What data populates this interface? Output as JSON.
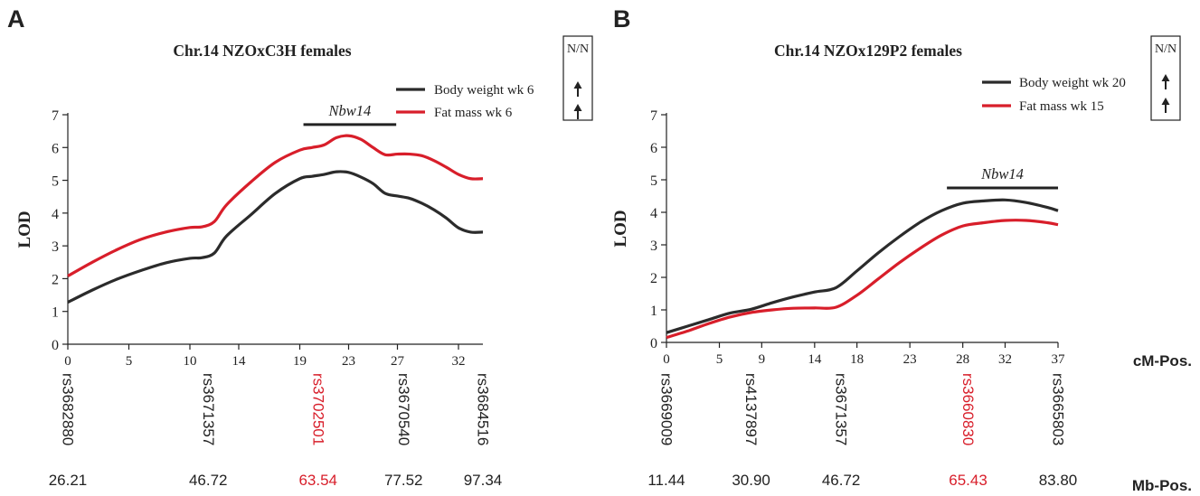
{
  "figure": {
    "bottom_row_labels": {
      "cm": "cM-Pos.",
      "mb": "Mb-Pos."
    },
    "legend_box_header": "N/N",
    "colors": {
      "body_weight": "#2b2b2b",
      "fat_mass": "#d81e2a",
      "marker_highlight": "#d81e2a",
      "text": "#222222"
    }
  },
  "chart_data": [
    {
      "type": "line",
      "panel_label": "A",
      "title": "Chr.14 NZOxC3H females",
      "ylabel": "LOD",
      "xlabel": "",
      "ylim": [
        0,
        7
      ],
      "xlim": [
        0,
        34
      ],
      "yticks": [
        0,
        1,
        2,
        3,
        4,
        5,
        6,
        7
      ],
      "xticks": [
        0,
        5,
        10,
        14,
        19,
        23,
        27,
        32
      ],
      "legend_position": "top-right",
      "series": [
        {
          "name": "Body weight wk 6",
          "color": "#2b2b2b",
          "x": [
            0,
            2,
            4,
            6,
            8,
            10,
            11,
            12,
            13,
            15,
            17,
            19,
            20,
            21,
            22,
            23,
            24,
            25,
            26,
            27,
            28,
            29,
            30,
            31,
            32,
            33,
            34
          ],
          "y": [
            1.28,
            1.65,
            1.98,
            2.25,
            2.48,
            2.62,
            2.64,
            2.78,
            3.3,
            3.95,
            4.6,
            5.05,
            5.12,
            5.18,
            5.26,
            5.24,
            5.1,
            4.9,
            4.6,
            4.52,
            4.45,
            4.3,
            4.1,
            3.85,
            3.55,
            3.42,
            3.42
          ]
        },
        {
          "name": "Fat mass wk 6",
          "color": "#d81e2a",
          "x": [
            0,
            2,
            4,
            6,
            8,
            10,
            11,
            12,
            13,
            15,
            17,
            19,
            20,
            21,
            22,
            23,
            24,
            25,
            26,
            27,
            28,
            29,
            30,
            31,
            32,
            33,
            34
          ],
          "y": [
            2.08,
            2.5,
            2.88,
            3.2,
            3.42,
            3.56,
            3.58,
            3.74,
            4.25,
            4.95,
            5.55,
            5.92,
            6.0,
            6.08,
            6.3,
            6.36,
            6.25,
            6.0,
            5.78,
            5.8,
            5.8,
            5.75,
            5.6,
            5.4,
            5.18,
            5.05,
            5.05
          ]
        }
      ],
      "qtl_bar": {
        "label": "Nbw14",
        "x_start": 19.3,
        "x_end": 26.9,
        "lod": 6.7
      },
      "legend_arrows": [
        "up",
        "up"
      ],
      "markers": [
        {
          "name": "rs3682880",
          "mb": "26.21",
          "x": 0,
          "highlight": false
        },
        {
          "name": "rs3671357",
          "mb": "46.72",
          "x": 11.5,
          "highlight": false
        },
        {
          "name": "rs3702501",
          "mb": "63.54",
          "x": 20.5,
          "highlight": true
        },
        {
          "name": "rs3670540",
          "mb": "77.52",
          "x": 27.5,
          "highlight": false
        },
        {
          "name": "rs3684516",
          "mb": "97.34",
          "x": 34,
          "highlight": false
        }
      ]
    },
    {
      "type": "line",
      "panel_label": "B",
      "title": "Chr.14 NZOx129P2 females",
      "ylabel": "LOD",
      "xlabel": "",
      "ylim": [
        0,
        7
      ],
      "xlim": [
        0,
        37
      ],
      "yticks": [
        0,
        1,
        2,
        3,
        4,
        5,
        6,
        7
      ],
      "xticks": [
        0,
        5,
        9,
        14,
        18,
        23,
        28,
        32,
        37
      ],
      "legend_position": "top-right",
      "series": [
        {
          "name": "Body weight wk 20",
          "color": "#2b2b2b",
          "x": [
            0,
            2,
            4,
            6,
            8,
            10,
            12,
            14,
            16,
            18,
            20,
            22,
            24,
            26,
            28,
            30,
            32,
            34,
            36,
            37
          ],
          "y": [
            0.3,
            0.5,
            0.7,
            0.9,
            1.02,
            1.22,
            1.4,
            1.55,
            1.68,
            2.2,
            2.75,
            3.25,
            3.7,
            4.05,
            4.28,
            4.35,
            4.38,
            4.3,
            4.15,
            4.05
          ]
        },
        {
          "name": "Fat mass wk 15",
          "color": "#d81e2a",
          "x": [
            0,
            2,
            4,
            6,
            8,
            10,
            12,
            14,
            16,
            18,
            20,
            22,
            24,
            26,
            28,
            30,
            32,
            34,
            36,
            37
          ],
          "y": [
            0.15,
            0.35,
            0.58,
            0.78,
            0.92,
            1.0,
            1.05,
            1.06,
            1.08,
            1.45,
            1.95,
            2.45,
            2.9,
            3.3,
            3.58,
            3.68,
            3.75,
            3.75,
            3.68,
            3.62
          ]
        }
      ],
      "qtl_bar": {
        "label": "Nbw14",
        "x_start": 26.5,
        "x_end": 37,
        "lod": 4.75
      },
      "legend_arrows": [
        "up",
        "up"
      ],
      "markers": [
        {
          "name": "rs3669009",
          "mb": "11.44",
          "x": 0,
          "highlight": false
        },
        {
          "name": "rs4137897",
          "mb": "30.90",
          "x": 8,
          "highlight": false
        },
        {
          "name": "rs3671357",
          "mb": "46.72",
          "x": 16.5,
          "highlight": false
        },
        {
          "name": "rs3660830",
          "mb": "65.43",
          "x": 28.5,
          "highlight": true
        },
        {
          "name": "rs3665803",
          "mb": "83.80",
          "x": 37,
          "highlight": false
        }
      ]
    }
  ]
}
